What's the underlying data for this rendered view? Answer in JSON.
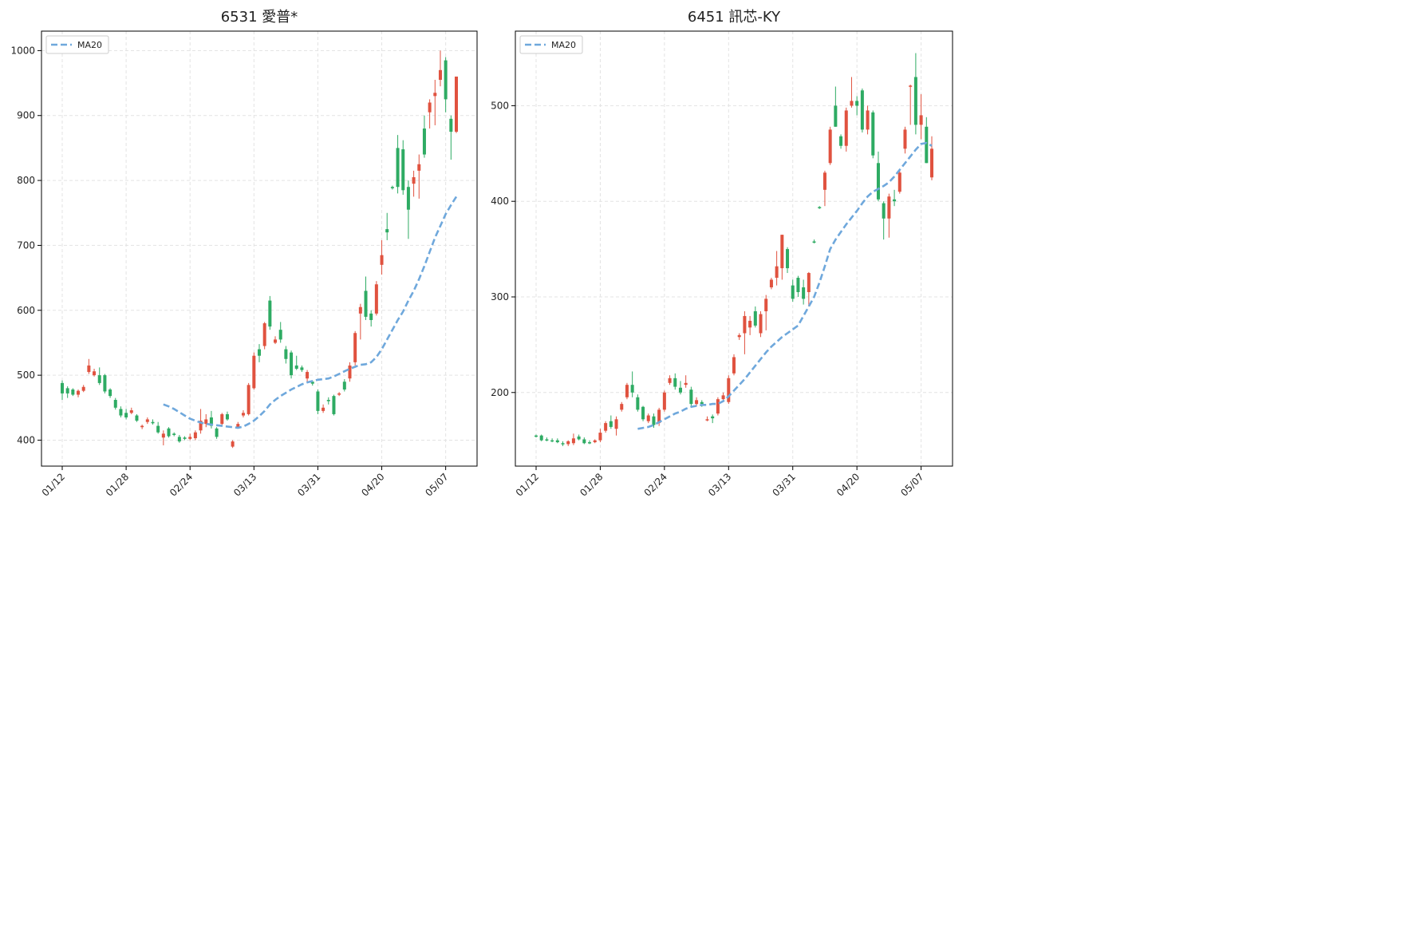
{
  "chart_data": [
    {
      "type": "candlestick",
      "title": "6531 愛普*",
      "up_color": "#e0523f",
      "down_color": "#2eab63",
      "grid": true,
      "legend": "upper left",
      "categories": [
        "01/12",
        null,
        null,
        null,
        null,
        null,
        null,
        null,
        null,
        null,
        null,
        null,
        "01/28",
        null,
        null,
        null,
        null,
        null,
        null,
        null,
        null,
        null,
        null,
        null,
        "02/24",
        null,
        null,
        null,
        null,
        null,
        null,
        null,
        null,
        null,
        null,
        null,
        "03/13",
        null,
        null,
        null,
        null,
        null,
        null,
        null,
        null,
        null,
        null,
        null,
        "03/31",
        null,
        null,
        null,
        null,
        null,
        null,
        null,
        null,
        null,
        null,
        null,
        "04/20",
        null,
        null,
        null,
        null,
        null,
        null,
        null,
        null,
        null,
        null,
        null,
        "05/07",
        null,
        null
      ],
      "ohlc": [
        [
          488,
          492,
          462,
          472
        ],
        [
          480,
          483,
          465,
          472
        ],
        [
          478,
          480,
          468,
          470
        ],
        [
          470,
          478,
          466,
          476
        ],
        [
          476,
          485,
          474,
          482
        ],
        [
          505,
          525,
          502,
          515
        ],
        [
          500,
          510,
          498,
          506
        ],
        [
          500,
          512,
          485,
          488
        ],
        [
          500,
          502,
          472,
          475
        ],
        [
          478,
          480,
          465,
          468
        ],
        [
          462,
          465,
          447,
          450
        ],
        [
          448,
          452,
          435,
          438
        ],
        [
          442,
          448,
          432,
          435
        ],
        [
          442,
          450,
          440,
          446
        ],
        [
          438,
          440,
          428,
          430
        ],
        [
          420,
          424,
          417,
          422
        ],
        [
          428,
          435,
          425,
          432
        ],
        [
          428,
          432,
          424,
          426
        ],
        [
          422,
          428,
          410,
          412
        ],
        [
          404,
          415,
          392,
          410
        ],
        [
          418,
          420,
          404,
          406
        ],
        [
          410,
          412,
          406,
          408
        ],
        [
          405,
          408,
          396,
          398
        ],
        [
          404,
          406,
          400,
          402
        ],
        [
          402,
          410,
          400,
          405
        ],
        [
          403,
          415,
          400,
          412
        ],
        [
          415,
          448,
          410,
          430
        ],
        [
          425,
          440,
          420,
          432
        ],
        [
          435,
          445,
          418,
          422
        ],
        [
          418,
          420,
          402,
          405
        ],
        [
          425,
          442,
          422,
          440
        ],
        [
          440,
          444,
          430,
          432
        ],
        [
          390,
          400,
          388,
          398
        ],
        [
          420,
          428,
          418,
          425
        ],
        [
          438,
          446,
          435,
          442
        ],
        [
          440,
          488,
          438,
          485
        ],
        [
          480,
          535,
          478,
          530
        ],
        [
          540,
          548,
          520,
          530
        ],
        [
          545,
          582,
          540,
          580
        ],
        [
          615,
          622,
          570,
          575
        ],
        [
          550,
          560,
          548,
          555
        ],
        [
          570,
          582,
          550,
          555
        ],
        [
          540,
          545,
          518,
          525
        ],
        [
          535,
          538,
          495,
          500
        ],
        [
          515,
          530,
          508,
          510
        ],
        [
          512,
          515,
          505,
          508
        ],
        [
          495,
          508,
          490,
          505
        ],
        [
          490,
          492,
          484,
          487
        ],
        [
          475,
          478,
          440,
          445
        ],
        [
          445,
          455,
          442,
          450
        ],
        [
          462,
          466,
          455,
          460
        ],
        [
          468,
          470,
          438,
          440
        ],
        [
          470,
          474,
          468,
          472
        ],
        [
          490,
          494,
          475,
          478
        ],
        [
          495,
          520,
          490,
          515
        ],
        [
          520,
          568,
          515,
          565
        ],
        [
          595,
          610,
          555,
          605
        ],
        [
          630,
          652,
          585,
          590
        ],
        [
          595,
          600,
          575,
          585
        ],
        [
          595,
          645,
          592,
          640
        ],
        [
          670,
          708,
          655,
          685
        ],
        [
          725,
          750,
          708,
          720
        ],
        [
          790,
          792,
          786,
          788
        ],
        [
          850,
          870,
          780,
          790
        ],
        [
          848,
          862,
          778,
          785
        ],
        [
          790,
          800,
          710,
          755
        ],
        [
          795,
          815,
          775,
          805
        ],
        [
          815,
          840,
          772,
          825
        ],
        [
          880,
          900,
          835,
          840
        ],
        [
          905,
          925,
          880,
          920
        ],
        [
          930,
          955,
          885,
          935
        ],
        [
          955,
          1000,
          945,
          970
        ],
        [
          985,
          990,
          905,
          925
        ],
        [
          895,
          900,
          832,
          875
        ],
        [
          875,
          960,
          873,
          960
        ]
      ],
      "ma": {
        "name": "MA20",
        "color": "#6fa8dc",
        "values": [
          null,
          null,
          null,
          null,
          null,
          null,
          null,
          null,
          null,
          null,
          null,
          null,
          null,
          null,
          null,
          null,
          null,
          null,
          null,
          455,
          452,
          448,
          443,
          438,
          433,
          430,
          427,
          425,
          424,
          423,
          422,
          421,
          420,
          419,
          421,
          425,
          430,
          437,
          445,
          455,
          462,
          468,
          473,
          478,
          482,
          486,
          489,
          491,
          493,
          494,
          495,
          498,
          502,
          506,
          510,
          513,
          516,
          517,
          520,
          528,
          540,
          555,
          570,
          585,
          598,
          615,
          630,
          648,
          668,
          690,
          712,
          730,
          748,
          762,
          775
        ]
      },
      "ylim": [
        360,
        1030
      ],
      "yticks": [
        400,
        500,
        600,
        700,
        800,
        900,
        1000
      ]
    },
    {
      "type": "candlestick",
      "title": "6451 訊芯-KY",
      "up_color": "#e0523f",
      "down_color": "#2eab63",
      "grid": true,
      "legend": "upper left",
      "categories": [
        "01/12",
        null,
        null,
        null,
        null,
        null,
        null,
        null,
        null,
        null,
        null,
        null,
        "01/28",
        null,
        null,
        null,
        null,
        null,
        null,
        null,
        null,
        null,
        null,
        null,
        "02/24",
        null,
        null,
        null,
        null,
        null,
        null,
        null,
        null,
        null,
        null,
        null,
        "03/13",
        null,
        null,
        null,
        null,
        null,
        null,
        null,
        null,
        null,
        null,
        null,
        "03/31",
        null,
        null,
        null,
        null,
        null,
        null,
        null,
        null,
        null,
        null,
        null,
        "04/20",
        null,
        null,
        null,
        null,
        null,
        null,
        null,
        null,
        null,
        null,
        null,
        "05/07",
        null,
        null
      ],
      "ohlc": [
        [
          155,
          156,
          153,
          154
        ],
        [
          155,
          156,
          149,
          150
        ],
        [
          151,
          153,
          149,
          150
        ],
        [
          150,
          152,
          148,
          149
        ],
        [
          150,
          152,
          147,
          148
        ],
        [
          147,
          149,
          144,
          146
        ],
        [
          146,
          150,
          144,
          149
        ],
        [
          147,
          157,
          145,
          152
        ],
        [
          154,
          156,
          150,
          151
        ],
        [
          151,
          153,
          146,
          147
        ],
        [
          148,
          150,
          146,
          147
        ],
        [
          148,
          151,
          147,
          150
        ],
        [
          150,
          162,
          148,
          158
        ],
        [
          160,
          170,
          158,
          168
        ],
        [
          170,
          176,
          162,
          164
        ],
        [
          162,
          175,
          155,
          172
        ],
        [
          182,
          190,
          180,
          188
        ],
        [
          195,
          210,
          193,
          208
        ],
        [
          208,
          222,
          195,
          200
        ],
        [
          195,
          198,
          180,
          182
        ],
        [
          185,
          186,
          170,
          172
        ],
        [
          170,
          178,
          168,
          176
        ],
        [
          175,
          178,
          163,
          166
        ],
        [
          168,
          184,
          165,
          182
        ],
        [
          182,
          202,
          180,
          200
        ],
        [
          210,
          218,
          208,
          215
        ],
        [
          215,
          220,
          203,
          206
        ],
        [
          205,
          212,
          198,
          200
        ],
        [
          208,
          218,
          205,
          210
        ],
        [
          203,
          206,
          185,
          188
        ],
        [
          188,
          195,
          186,
          192
        ],
        [
          190,
          192,
          185,
          188
        ],
        [
          172,
          175,
          170,
          172
        ],
        [
          175,
          177,
          168,
          173
        ],
        [
          178,
          195,
          176,
          193
        ],
        [
          193,
          200,
          190,
          197
        ],
        [
          190,
          218,
          188,
          215
        ],
        [
          220,
          240,
          218,
          237
        ],
        [
          258,
          262,
          255,
          260
        ],
        [
          262,
          285,
          240,
          280
        ],
        [
          268,
          280,
          260,
          275
        ],
        [
          285,
          290,
          268,
          270
        ],
        [
          262,
          285,
          258,
          282
        ],
        [
          285,
          302,
          265,
          298
        ],
        [
          310,
          320,
          308,
          318
        ],
        [
          320,
          348,
          312,
          332
        ],
        [
          330,
          365,
          318,
          365
        ],
        [
          350,
          352,
          325,
          330
        ],
        [
          312,
          318,
          295,
          298
        ],
        [
          320,
          322,
          300,
          305
        ],
        [
          310,
          318,
          292,
          298
        ],
        [
          305,
          326,
          290,
          325
        ],
        [
          358,
          360,
          356,
          357
        ],
        [
          394,
          395,
          392,
          393
        ],
        [
          412,
          432,
          395,
          430
        ],
        [
          440,
          478,
          438,
          475
        ],
        [
          500,
          520,
          478,
          478
        ],
        [
          468,
          470,
          455,
          458
        ],
        [
          458,
          498,
          452,
          495
        ],
        [
          500,
          530,
          498,
          505
        ],
        [
          505,
          510,
          490,
          500
        ],
        [
          516,
          518,
          472,
          475
        ],
        [
          475,
          500,
          470,
          495
        ],
        [
          493,
          495,
          445,
          448
        ],
        [
          440,
          452,
          400,
          402
        ],
        [
          398,
          400,
          360,
          382
        ],
        [
          382,
          408,
          362,
          405
        ],
        [
          402,
          412,
          395,
          400
        ],
        [
          410,
          432,
          408,
          430
        ],
        [
          455,
          478,
          450,
          475
        ],
        [
          520,
          522,
          480,
          521
        ],
        [
          530,
          555,
          470,
          480
        ],
        [
          480,
          512,
          465,
          490
        ],
        [
          478,
          488,
          440,
          440
        ],
        [
          425,
          468,
          422,
          455
        ]
      ],
      "ma": {
        "name": "MA20",
        "color": "#6fa8dc",
        "values": [
          null,
          null,
          null,
          null,
          null,
          null,
          null,
          null,
          null,
          null,
          null,
          null,
          null,
          null,
          null,
          null,
          null,
          null,
          null,
          162,
          163,
          164,
          166,
          169,
          172,
          175,
          178,
          180,
          183,
          185,
          186,
          187,
          187,
          188,
          188,
          191,
          196,
          202,
          208,
          214,
          221,
          228,
          235,
          242,
          248,
          253,
          258,
          262,
          266,
          270,
          280,
          290,
          300,
          315,
          332,
          350,
          360,
          368,
          376,
          383,
          390,
          398,
          405,
          410,
          413,
          416,
          420,
          426,
          433,
          440,
          447,
          454,
          460,
          461,
          458
        ]
      },
      "ylim": [
        123,
        578
      ],
      "yticks": [
        200,
        300,
        400,
        500
      ]
    }
  ]
}
